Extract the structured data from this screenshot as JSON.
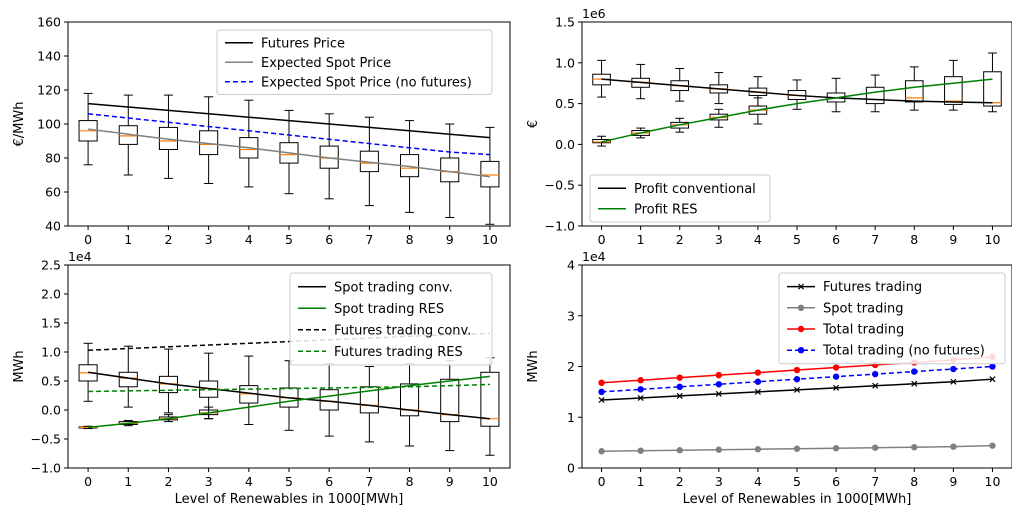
{
  "chart_data": [
    {
      "type": "box+line",
      "ylabel": "€/MWh",
      "xlabel": "",
      "ylim": [
        40,
        160
      ],
      "yticks": [
        "40",
        "60",
        "80",
        "100",
        "120",
        "140",
        "160"
      ],
      "xticks": [
        "0",
        "1",
        "2",
        "3",
        "4",
        "5",
        "6",
        "7",
        "8",
        "9",
        "10"
      ],
      "x": [
        0,
        1,
        2,
        3,
        4,
        5,
        6,
        7,
        8,
        9,
        10
      ],
      "legend_position": "upper right",
      "series": [
        {
          "name": "Futures Price",
          "color": "#000000",
          "style": "solid",
          "values": [
            112,
            110,
            108,
            106,
            104,
            102,
            100,
            98,
            96,
            94,
            92
          ]
        },
        {
          "name": "Expected Spot Price",
          "color": "#808080",
          "style": "solid",
          "values": [
            97,
            94,
            91,
            88.5,
            86,
            83,
            80,
            77.5,
            75,
            72,
            69
          ]
        },
        {
          "name": "Expected Spot Price (no futures)",
          "color": "#0000ff",
          "style": "dashed",
          "values": [
            106,
            103.5,
            101,
            98.5,
            96,
            93.5,
            91,
            88.5,
            86,
            83.5,
            82
          ]
        }
      ],
      "boxes": [
        {
          "q1": 90,
          "median": 96,
          "q3": 102,
          "whislo": 76,
          "whishi": 118
        },
        {
          "q1": 88,
          "median": 93,
          "q3": 99,
          "whislo": 70,
          "whishi": 117
        },
        {
          "q1": 85,
          "median": 90,
          "q3": 98,
          "whislo": 68,
          "whishi": 117
        },
        {
          "q1": 82,
          "median": 88,
          "q3": 96,
          "whislo": 65,
          "whishi": 116
        },
        {
          "q1": 80,
          "median": 85,
          "q3": 92,
          "whislo": 63,
          "whishi": 114
        },
        {
          "q1": 77,
          "median": 82,
          "q3": 89,
          "whislo": 59,
          "whishi": 108
        },
        {
          "q1": 74,
          "median": 80,
          "q3": 87,
          "whislo": 56,
          "whishi": 106
        },
        {
          "q1": 72,
          "median": 77,
          "q3": 84,
          "whislo": 52,
          "whishi": 104
        },
        {
          "q1": 69,
          "median": 74,
          "q3": 82,
          "whislo": 48,
          "whishi": 102
        },
        {
          "q1": 66,
          "median": 72,
          "q3": 80,
          "whislo": 45,
          "whishi": 100
        },
        {
          "q1": 63,
          "median": 70,
          "q3": 78,
          "whislo": 41,
          "whishi": 98
        }
      ]
    },
    {
      "type": "box+line",
      "ylabel": "€",
      "xlabel": "",
      "offset_label": "1e6",
      "ylim": [
        -1.0,
        1.5
      ],
      "yticks": [
        "−1.0",
        "−0.5",
        "0.0",
        "0.5",
        "1.0",
        "1.5"
      ],
      "xticks": [
        "0",
        "1",
        "2",
        "3",
        "4",
        "5",
        "6",
        "7",
        "8",
        "9",
        "10"
      ],
      "x": [
        0,
        1,
        2,
        3,
        4,
        5,
        6,
        7,
        8,
        9,
        10
      ],
      "legend_position": "lower left",
      "series": [
        {
          "name": "Profit conventional",
          "color": "#000000",
          "style": "solid",
          "values": [
            0.8,
            0.76,
            0.72,
            0.68,
            0.64,
            0.6,
            0.57,
            0.55,
            0.53,
            0.52,
            0.51
          ]
        },
        {
          "name": "Profit RES",
          "color": "#008000",
          "style": "solid",
          "values": [
            0.03,
            0.14,
            0.24,
            0.33,
            0.42,
            0.5,
            0.57,
            0.64,
            0.7,
            0.75,
            0.8
          ]
        }
      ],
      "boxes": [
        {
          "q1": 0.73,
          "median": 0.8,
          "q3": 0.86,
          "whislo": 0.58,
          "whishi": 1.03
        },
        {
          "q1": 0.7,
          "median": 0.76,
          "q3": 0.81,
          "whislo": 0.56,
          "whishi": 0.98
        },
        {
          "q1": 0.66,
          "median": 0.72,
          "q3": 0.78,
          "whislo": 0.53,
          "whishi": 0.93
        },
        {
          "q1": 0.63,
          "median": 0.68,
          "q3": 0.73,
          "whislo": 0.5,
          "whishi": 0.88
        },
        {
          "q1": 0.6,
          "median": 0.64,
          "q3": 0.69,
          "whislo": 0.47,
          "whishi": 0.83
        },
        {
          "q1": 0.55,
          "median": 0.6,
          "q3": 0.66,
          "whislo": 0.43,
          "whishi": 0.79
        },
        {
          "q1": 0.52,
          "median": 0.57,
          "q3": 0.63,
          "whislo": 0.4,
          "whishi": 0.81
        },
        {
          "q1": 0.5,
          "median": 0.55,
          "q3": 0.7,
          "whislo": 0.4,
          "whishi": 0.85
        },
        {
          "q1": 0.52,
          "median": 0.57,
          "q3": 0.78,
          "whislo": 0.42,
          "whishi": 0.95
        },
        {
          "q1": 0.49,
          "median": 0.53,
          "q3": 0.83,
          "whislo": 0.42,
          "whishi": 1.03
        },
        {
          "q1": 0.47,
          "median": 0.51,
          "q3": 0.89,
          "whislo": 0.4,
          "whishi": 1.12
        },
        {
          "q1": 0.02,
          "median": 0.03,
          "q3": 0.06,
          "whislo": -0.02,
          "whishi": 0.1
        },
        {
          "q1": 0.11,
          "median": 0.14,
          "q3": 0.17,
          "whislo": 0.08,
          "whishi": 0.2
        },
        {
          "q1": 0.2,
          "median": 0.24,
          "q3": 0.27,
          "whislo": 0.15,
          "whishi": 0.32
        },
        {
          "q1": 0.3,
          "median": 0.33,
          "q3": 0.37,
          "whislo": 0.21,
          "whishi": 0.43
        },
        {
          "q1": 0.37,
          "median": 0.42,
          "q3": 0.47,
          "whislo": 0.25,
          "whishi": 0.57
        }
      ]
    },
    {
      "type": "box+line",
      "ylabel": "MWh",
      "xlabel": "Level of Renewables in 1000[MWh]",
      "offset_label": "1e4",
      "ylim": [
        -1.0,
        2.5
      ],
      "yticks": [
        "−1.0",
        "−0.5",
        "0.0",
        "0.5",
        "1.0",
        "1.5",
        "2.0",
        "2.5"
      ],
      "xticks": [
        "0",
        "1",
        "2",
        "3",
        "4",
        "5",
        "6",
        "7",
        "8",
        "9",
        "10"
      ],
      "x": [
        0,
        1,
        2,
        3,
        4,
        5,
        6,
        7,
        8,
        9,
        10
      ],
      "legend_position": "upper right",
      "series": [
        {
          "name": "Spot trading conv.",
          "color": "#000000",
          "style": "solid",
          "values": [
            0.65,
            0.55,
            0.45,
            0.37,
            0.29,
            0.21,
            0.15,
            0.08,
            0.0,
            -0.08,
            -0.15
          ]
        },
        {
          "name": "Spot trading RES",
          "color": "#008000",
          "style": "solid",
          "values": [
            -0.3,
            -0.23,
            -0.15,
            -0.05,
            0.05,
            0.15,
            0.24,
            0.33,
            0.42,
            0.5,
            0.58
          ]
        },
        {
          "name": "Futures trading conv.",
          "color": "#000000",
          "style": "dashed",
          "values": [
            1.03,
            1.06,
            1.09,
            1.12,
            1.15,
            1.18,
            1.21,
            1.24,
            1.27,
            1.3,
            1.32
          ]
        },
        {
          "name": "Futures trading RES",
          "color": "#008000",
          "style": "dashed",
          "values": [
            0.32,
            0.33,
            0.34,
            0.35,
            0.36,
            0.37,
            0.38,
            0.39,
            0.4,
            0.42,
            0.44
          ]
        }
      ],
      "boxes": [
        {
          "q1": 0.5,
          "median": 0.64,
          "q3": 0.78,
          "whislo": 0.15,
          "whishi": 1.15
        },
        {
          "q1": 0.4,
          "median": 0.55,
          "q3": 0.65,
          "whislo": 0.05,
          "whishi": 1.1
        },
        {
          "q1": 0.3,
          "median": 0.45,
          "q3": 0.58,
          "whislo": -0.05,
          "whishi": 1.05
        },
        {
          "q1": 0.22,
          "median": 0.37,
          "q3": 0.5,
          "whislo": -0.15,
          "whishi": 0.98
        },
        {
          "q1": 0.12,
          "median": 0.28,
          "q3": 0.42,
          "whislo": -0.25,
          "whishi": 0.93
        },
        {
          "q1": 0.05,
          "median": 0.21,
          "q3": 0.38,
          "whislo": -0.35,
          "whishi": 0.85
        },
        {
          "q1": 0.0,
          "median": 0.15,
          "q3": 0.35,
          "whislo": -0.45,
          "whishi": 0.8
        },
        {
          "q1": -0.05,
          "median": 0.08,
          "q3": 0.4,
          "whislo": -0.55,
          "whishi": 0.75
        },
        {
          "q1": -0.1,
          "median": 0.0,
          "q3": 0.45,
          "whislo": -0.62,
          "whishi": 0.8
        },
        {
          "q1": -0.2,
          "median": -0.08,
          "q3": 0.53,
          "whislo": -0.7,
          "whishi": 0.85
        },
        {
          "q1": -0.28,
          "median": -0.15,
          "q3": 0.65,
          "whislo": -0.78,
          "whishi": 0.9
        },
        {
          "q1": -0.31,
          "median": -0.3,
          "q3": -0.29,
          "whislo": -0.32,
          "whishi": -0.28
        },
        {
          "q1": -0.25,
          "median": -0.23,
          "q3": -0.2,
          "whislo": -0.27,
          "whishi": -0.18
        },
        {
          "q1": -0.17,
          "median": -0.15,
          "q3": -0.12,
          "whislo": -0.2,
          "whishi": -0.08
        },
        {
          "q1": -0.08,
          "median": -0.05,
          "q3": 0.0,
          "whislo": -0.15,
          "whishi": 0.05
        }
      ]
    },
    {
      "type": "line",
      "ylabel": "MWh",
      "xlabel": "Level of Renewables in 1000[MWh]",
      "offset_label": "1e4",
      "ylim": [
        0,
        4
      ],
      "yticks": [
        "0",
        "1",
        "2",
        "3",
        "4"
      ],
      "xticks": [
        "0",
        "1",
        "2",
        "3",
        "4",
        "5",
        "6",
        "7",
        "8",
        "9",
        "10"
      ],
      "x": [
        0,
        1,
        2,
        3,
        4,
        5,
        6,
        7,
        8,
        9,
        10
      ],
      "legend_position": "upper right",
      "series": [
        {
          "name": "Futures trading",
          "color": "#000000",
          "style": "solid",
          "marker": "x",
          "values": [
            1.34,
            1.38,
            1.42,
            1.46,
            1.5,
            1.54,
            1.58,
            1.62,
            1.66,
            1.7,
            1.75
          ]
        },
        {
          "name": "Spot trading",
          "color": "#808080",
          "style": "solid",
          "marker": "o",
          "values": [
            0.33,
            0.34,
            0.35,
            0.36,
            0.37,
            0.38,
            0.39,
            0.4,
            0.41,
            0.42,
            0.44
          ]
        },
        {
          "name": "Total trading",
          "color": "#ff0000",
          "style": "solid",
          "marker": "o",
          "values": [
            1.68,
            1.73,
            1.78,
            1.83,
            1.88,
            1.93,
            1.98,
            2.03,
            2.08,
            2.13,
            2.19
          ]
        },
        {
          "name": "Total trading (no futures)",
          "color": "#0000ff",
          "style": "dashed",
          "marker": "o",
          "values": [
            1.5,
            1.55,
            1.6,
            1.65,
            1.7,
            1.75,
            1.8,
            1.85,
            1.9,
            1.95,
            2.0
          ]
        }
      ]
    }
  ]
}
